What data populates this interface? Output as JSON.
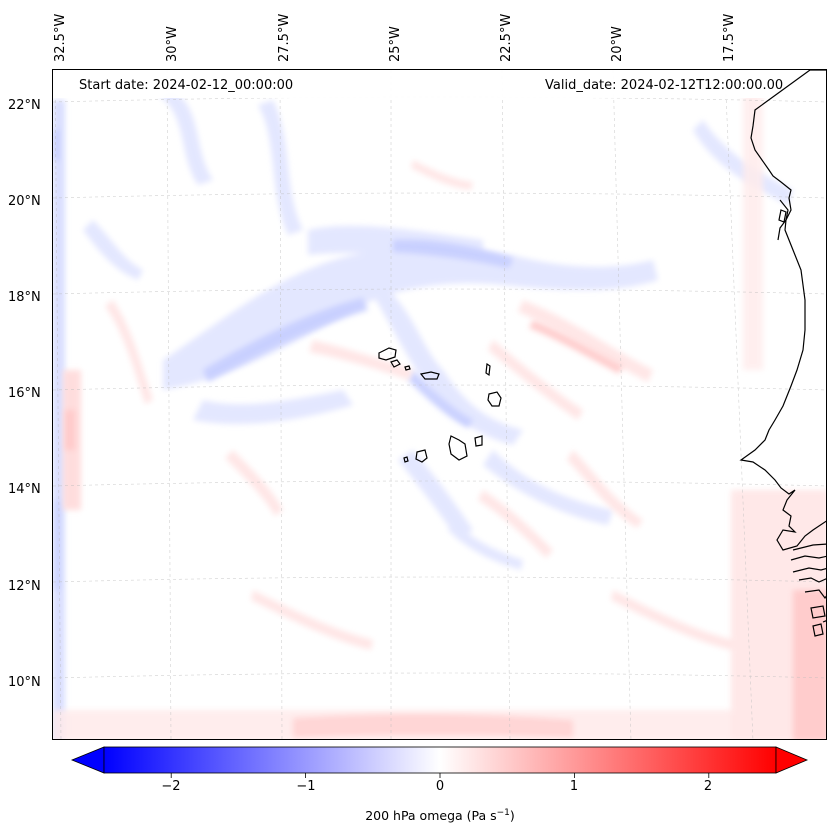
{
  "header": {
    "start_date": "Start date: 2024-02-12_00:00:00",
    "valid_date": "Valid_date: 2024-02-12T12:00:00.00"
  },
  "longitude_labels": [
    "32.5°W",
    "30°W",
    "27.5°W",
    "25°W",
    "22.5°W",
    "20°W",
    "17.5°W"
  ],
  "latitude_labels": [
    "22°N",
    "20°N",
    "18°N",
    "16°N",
    "14°N",
    "12°N",
    "10°N"
  ],
  "colorbar": {
    "label": "200 hPa omega (Pa s",
    "label_exponent": "−1",
    "label_suffix": ")",
    "ticks": [
      "−2",
      "−1",
      "0",
      "1",
      "2"
    ],
    "tick_values": [
      -2,
      -1,
      0,
      1,
      2
    ],
    "range": [
      -2.5,
      2.5
    ],
    "colormap": "bwr",
    "extend": "both"
  },
  "colors": {
    "negative": "#0000ff",
    "positive": "#ff0000",
    "neutral": "#ffffff",
    "coastline": "#000000",
    "gridline": "#bdbdbd"
  },
  "map": {
    "field": "200 hPa omega",
    "gridlines": true
  }
}
